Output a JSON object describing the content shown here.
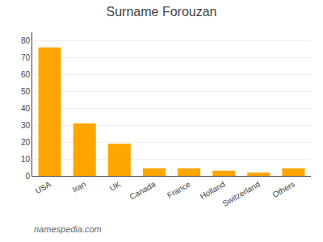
{
  "chart_data": {
    "type": "bar",
    "title": "Surname Forouzan",
    "categories": [
      "USA",
      "Iran",
      "UK",
      "Canada",
      "France",
      "Holland",
      "Switzerland",
      "Others"
    ],
    "values": [
      76,
      31,
      19,
      4.5,
      4.5,
      3,
      2,
      4.5
    ],
    "color": "#FFA500",
    "ylim": [
      0,
      85
    ],
    "yticks": [
      0,
      10,
      20,
      30,
      40,
      50,
      60,
      70,
      80
    ],
    "grid": true,
    "annotation": "namespedia.com"
  }
}
